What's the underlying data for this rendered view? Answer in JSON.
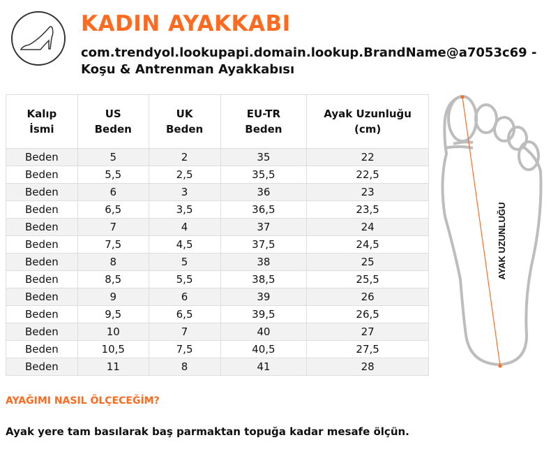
{
  "header": {
    "title": "KADIN AYAKKABI",
    "subtitle": "com.trendyol.lookupapi.domain.lookup.BrandName@a7053c69 - Koşu & Antrenman Ayakkabısı",
    "icon": "high-heel-shoe-icon"
  },
  "table": {
    "headers": [
      [
        "Kalıp",
        "İsmi"
      ],
      [
        "US",
        "Beden"
      ],
      [
        "UK",
        "Beden"
      ],
      [
        "EU-TR",
        "Beden"
      ],
      [
        "Ayak Uzunluğu",
        "(cm)"
      ]
    ],
    "rows": [
      [
        "Beden",
        "5",
        "2",
        "35",
        "22"
      ],
      [
        "Beden",
        "5,5",
        "2,5",
        "35,5",
        "22,5"
      ],
      [
        "Beden",
        "6",
        "3",
        "36",
        "23"
      ],
      [
        "Beden",
        "6,5",
        "3,5",
        "36,5",
        "23,5"
      ],
      [
        "Beden",
        "7",
        "4",
        "37",
        "24"
      ],
      [
        "Beden",
        "7,5",
        "4,5",
        "37,5",
        "24,5"
      ],
      [
        "Beden",
        "8",
        "5",
        "38",
        "25"
      ],
      [
        "Beden",
        "8,5",
        "5,5",
        "38,5",
        "25,5"
      ],
      [
        "Beden",
        "9",
        "6",
        "39",
        "26"
      ],
      [
        "Beden",
        "9,5",
        "6,5",
        "39,5",
        "26,5"
      ],
      [
        "Beden",
        "10",
        "7",
        "40",
        "27"
      ],
      [
        "Beden",
        "10,5",
        "7,5",
        "40,5",
        "27,5"
      ],
      [
        "Beden",
        "11",
        "8",
        "41",
        "28"
      ]
    ]
  },
  "foot": {
    "label": "AYAK UZUNLUĞU",
    "accent": "#ff6a1f"
  },
  "help": {
    "heading": "AYAĞIMI NASIL ÖLÇECEĞİM?",
    "text": "Ayak yere tam basılarak baş parmaktan topuğa kadar mesafe ölçün."
  }
}
